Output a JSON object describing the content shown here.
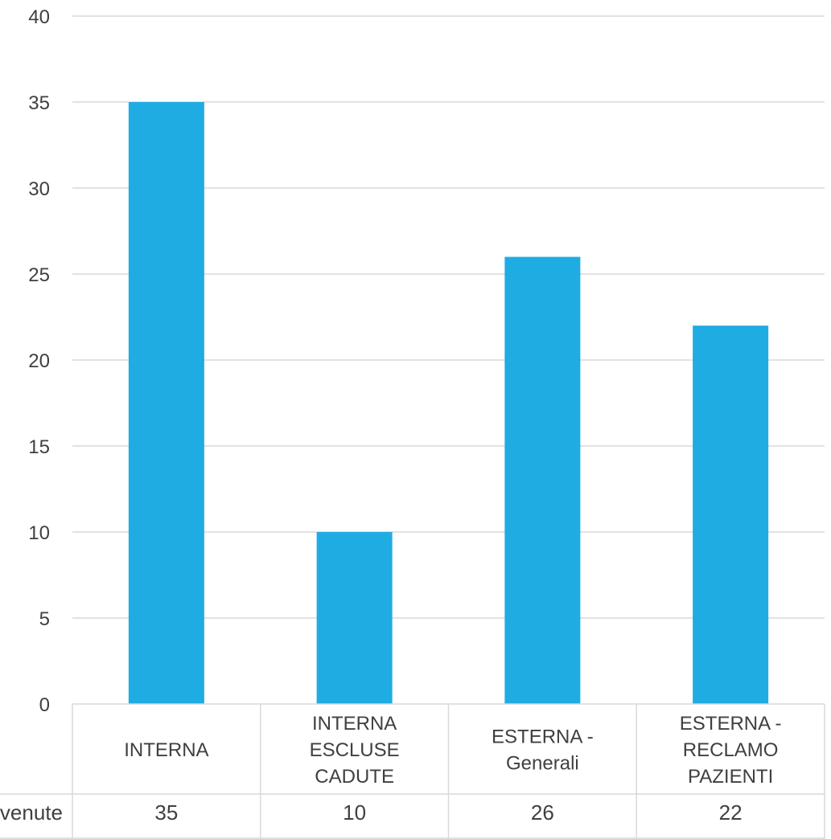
{
  "chart_data": {
    "type": "bar",
    "categories": [
      [
        "INTERNA"
      ],
      [
        "INTERNA",
        "ESCLUSE",
        "CADUTE"
      ],
      [
        "ESTERNA -",
        "Generali"
      ],
      [
        "ESTERNA -",
        "RECLAMO",
        "PAZIENTI"
      ]
    ],
    "series": [
      {
        "name": "venute",
        "values": [
          35,
          10,
          26,
          22
        ]
      }
    ],
    "ylim": [
      0,
      40
    ],
    "yticks": [
      "0",
      "5",
      "10",
      "15",
      "20",
      "25",
      "30",
      "35",
      "40"
    ],
    "grid": true,
    "data_table": {
      "row_label": "venute",
      "cells": [
        "35",
        "10",
        "26",
        "22"
      ]
    },
    "bar_color": "#1FACE3",
    "grid_color": "#D9D9D9"
  }
}
